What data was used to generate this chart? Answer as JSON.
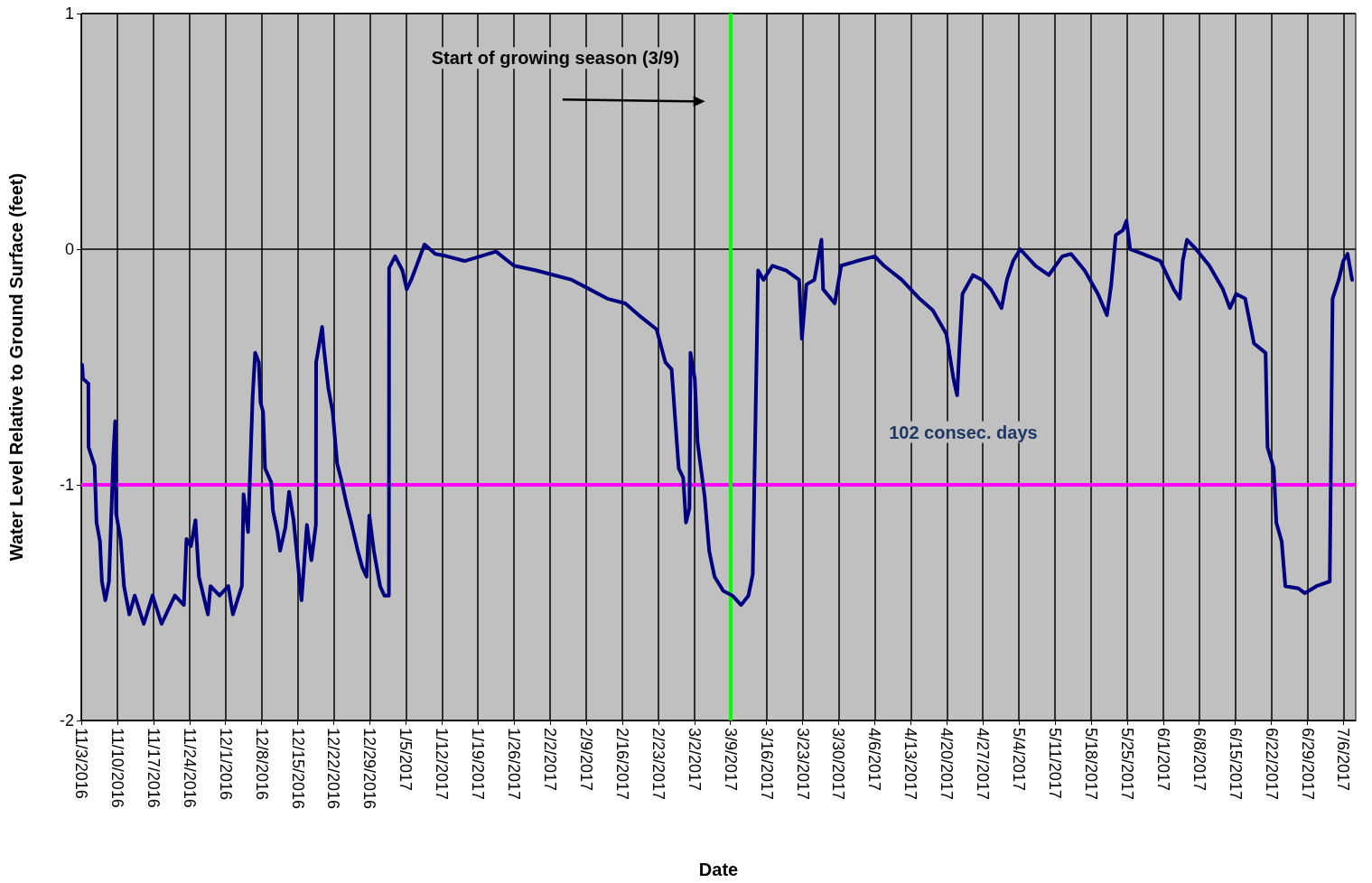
{
  "chart_data": {
    "type": "line",
    "xlabel": "Date",
    "ylabel": "Water Level Relative to Ground Surface (feet)",
    "series": [
      {
        "color": "#000080",
        "x": [
          "2016-11-03T04:00",
          "2016-11-03T08:00",
          "2016-11-04T09:00",
          "2016-11-04T10:00",
          "2016-11-05T14:00",
          "2016-11-05T23:00",
          "2016-11-06T15:00",
          "2016-11-07T00:00",
          "2016-11-07T16:00",
          "2016-11-08T09:00",
          "2016-11-09T06:00",
          "2016-11-09T14:00",
          "2016-11-09T18:00",
          "2016-11-10T15:00",
          "2016-11-11T07:00",
          "2016-11-12T08:00",
          "2016-11-13T09:00",
          "2016-11-15T03:00",
          "2016-11-16T20:00",
          "2016-11-18T14:00",
          "2016-11-21T04:00",
          "2016-11-22T22:00",
          "2016-11-23T10:00",
          "2016-11-24T07:00",
          "2016-11-25T04:00",
          "2016-11-25T20:00",
          "2016-11-27T14:00",
          "2016-11-28T02:00",
          "2016-11-29T20:00",
          "2016-12-01T13:00",
          "2016-12-02T10:00",
          "2016-12-04T04:00",
          "2016-12-04T12:00",
          "2016-12-05T09:00",
          "2016-12-06T06:00",
          "2016-12-06T18:00",
          "2016-12-07T11:00",
          "2016-12-07T19:00",
          "2016-12-08T07:00",
          "2016-12-08T16:00",
          "2016-12-09T21:00",
          "2016-12-10T05:00",
          "2016-12-11T02:00",
          "2016-12-11T14:00",
          "2016-12-12T15:00",
          "2016-12-13T08:00",
          "2016-12-14T05:00",
          "2016-12-14T17:00",
          "2016-12-15T18:00",
          "2016-12-16T19:00",
          "2016-12-17T16:00",
          "2016-12-18T13:00",
          "2016-12-18T14:00",
          "2016-12-19T18:00",
          "2016-12-20T02:00",
          "2016-12-20T23:00",
          "2016-12-21T19:00",
          "2016-12-22T16:00",
          "2016-12-23T09:00",
          "2016-12-24T14:00",
          "2016-12-25T07:00",
          "2016-12-26T16:00",
          "2016-12-27T13:00",
          "2016-12-28T09:00",
          "2016-12-28T22:00",
          "2016-12-29T19:00",
          "2016-12-31T00:00",
          "2016-12-31T20:00",
          "2017-01-01T17:00",
          "2017-01-01T18:00",
          "2017-01-02T22:00",
          "2017-01-04T08:00",
          "2017-01-05T04:00",
          "2017-01-06T01:00",
          "2017-01-08T15:00",
          "2017-01-10T17:00",
          "2017-01-12T23:00",
          "2017-01-16T10:00",
          "2017-01-22T12:00",
          "2017-01-25T23:00",
          "2017-01-30T07:00",
          "2017-02-02T18:00",
          "2017-02-06T05:00",
          "2017-02-09T16:00",
          "2017-02-13T03:00",
          "2017-02-16T14:00",
          "2017-02-19T05:00",
          "2017-02-22T16:00",
          "2017-02-24T09:00",
          "2017-02-25T14:00",
          "2017-02-26T23:00",
          "2017-02-27T20:00",
          "2017-02-28T09:00",
          "2017-03-01T01:00",
          "2017-03-01T06:00",
          "2017-03-02T02:00",
          "2017-03-02T15:00",
          "2017-03-04T00:00",
          "2017-03-04T21:00",
          "2017-03-05T22:00",
          "2017-03-07T15:00",
          "2017-03-09T09:00",
          "2017-03-11T02:00",
          "2017-03-12T12:00",
          "2017-03-13T08:00",
          "2017-03-14T09:00",
          "2017-03-15T10:00",
          "2017-03-17T04:00",
          "2017-03-19T18:00",
          "2017-03-22T08:00",
          "2017-03-22T21:00",
          "2017-03-23T18:00",
          "2017-03-25T07:00",
          "2017-03-26T16:00",
          "2017-03-27T00:00",
          "2017-03-29T06:00",
          "2017-03-30T12:00",
          "2017-04-02T14:00",
          "2017-04-06T01:00",
          "2017-04-07T19:00",
          "2017-04-11T06:00",
          "2017-04-14T17:00",
          "2017-04-17T07:00",
          "2017-04-19T22:00",
          "2017-04-21T07:00",
          "2017-04-22T00:00",
          "2017-04-22T12:00",
          "2017-04-23T01:00",
          "2017-04-25T02:00",
          "2017-04-26T20:00",
          "2017-04-28T13:00",
          "2017-04-30T15:00",
          "2017-05-01T16:00",
          "2017-05-02T21:00",
          "2017-05-04T06:00",
          "2017-05-07T05:00",
          "2017-05-09T19:00",
          "2017-05-12T10:00",
          "2017-05-14T03:00",
          "2017-05-16T18:00",
          "2017-05-19T08:00",
          "2017-05-21T02:00",
          "2017-05-21T22:00",
          "2017-05-22T19:00",
          "2017-05-24T04:00",
          "2017-05-24T21:00",
          "2017-05-25T14:00",
          "2017-05-28T00:00",
          "2017-05-31T11:00",
          "2017-06-03T01:00",
          "2017-06-04T06:00",
          "2017-06-04T19:00",
          "2017-06-05T15:00",
          "2017-06-07T09:00",
          "2017-06-09T23:00",
          "2017-06-12T14:00",
          "2017-06-13T23:00",
          "2017-06-15T04:00",
          "2017-06-16T22:00",
          "2017-06-18T15:00",
          "2017-06-20T21:00",
          "2017-06-21T06:00",
          "2017-06-22T11:00",
          "2017-06-22T23:00",
          "2017-06-24T00:00",
          "2017-06-24T17:00",
          "2017-06-27T07:00",
          "2017-06-28T12:00",
          "2017-06-30T18:00",
          "2017-07-03T08:00",
          "2017-07-03T21:00",
          "2017-07-05T02:00",
          "2017-07-05T23:00",
          "2017-07-06T19:00",
          "2017-07-07T16:00"
        ],
        "values": [
          -0.49,
          -0.55,
          -0.57,
          -0.84,
          -0.92,
          -1.16,
          -1.24,
          -1.41,
          -1.49,
          -1.41,
          -0.86,
          -0.73,
          -1.12,
          -1.23,
          -1.43,
          -1.55,
          -1.47,
          -1.59,
          -1.47,
          -1.59,
          -1.47,
          -1.51,
          -1.23,
          -1.26,
          -1.15,
          -1.39,
          -1.55,
          -1.43,
          -1.47,
          -1.43,
          -1.55,
          -1.43,
          -1.04,
          -1.2,
          -0.63,
          -0.44,
          -0.48,
          -0.65,
          -0.69,
          -0.93,
          -0.99,
          -1.11,
          -1.2,
          -1.28,
          -1.18,
          -1.03,
          -1.15,
          -1.26,
          -1.49,
          -1.17,
          -1.32,
          -1.17,
          -0.48,
          -0.33,
          -0.42,
          -0.59,
          -0.69,
          -0.91,
          -0.97,
          -1.09,
          -1.15,
          -1.28,
          -1.35,
          -1.39,
          -1.13,
          -1.28,
          -1.43,
          -1.47,
          -1.47,
          -0.08,
          -0.03,
          -0.09,
          -0.17,
          -0.13,
          0.02,
          -0.02,
          -0.03,
          -0.05,
          -0.01,
          -0.07,
          -0.09,
          -0.11,
          -0.13,
          -0.17,
          -0.21,
          -0.23,
          -0.28,
          -0.34,
          -0.48,
          -0.51,
          -0.93,
          -0.97,
          -1.16,
          -1.1,
          -0.44,
          -0.55,
          -0.82,
          -1.05,
          -1.28,
          -1.39,
          -1.45,
          -1.47,
          -1.51,
          -1.47,
          -1.38,
          -0.09,
          -0.13,
          -0.07,
          -0.09,
          -0.13,
          -0.38,
          -0.15,
          -0.13,
          0.04,
          -0.17,
          -0.23,
          -0.07,
          -0.05,
          -0.03,
          -0.07,
          -0.13,
          -0.21,
          -0.26,
          -0.36,
          -0.55,
          -0.62,
          -0.4,
          -0.19,
          -0.11,
          -0.13,
          -0.17,
          -0.25,
          -0.13,
          -0.05,
          0.0,
          -0.07,
          -0.11,
          -0.03,
          -0.02,
          -0.09,
          -0.19,
          -0.28,
          -0.15,
          0.06,
          0.08,
          0.12,
          0.0,
          -0.02,
          -0.05,
          -0.17,
          -0.21,
          -0.05,
          0.04,
          0.0,
          -0.07,
          -0.17,
          -0.25,
          -0.19,
          -0.21,
          -0.4,
          -0.44,
          -0.84,
          -0.93,
          -1.16,
          -1.24,
          -1.43,
          -1.44,
          -1.46,
          -1.43,
          -1.41,
          -0.21,
          -0.13,
          -0.05,
          -0.02,
          -0.13
        ]
      }
    ],
    "xlim": [
      "2016-11-03",
      "2017-07-08T09:00"
    ],
    "xticks": [
      {
        "value": "2016-11-03",
        "label": "11/3/2016"
      },
      {
        "value": "2016-11-10",
        "label": "11/10/2016"
      },
      {
        "value": "2016-11-17",
        "label": "11/17/2016"
      },
      {
        "value": "2016-11-24",
        "label": "11/24/2016"
      },
      {
        "value": "2016-12-01",
        "label": "12/1/2016"
      },
      {
        "value": "2016-12-08",
        "label": "12/8/2016"
      },
      {
        "value": "2016-12-15",
        "label": "12/15/2016"
      },
      {
        "value": "2016-12-22",
        "label": "12/22/2016"
      },
      {
        "value": "2016-12-29",
        "label": "12/29/2016"
      },
      {
        "value": "2017-01-05",
        "label": "1/5/2017"
      },
      {
        "value": "2017-01-12",
        "label": "1/12/2017"
      },
      {
        "value": "2017-01-19",
        "label": "1/19/2017"
      },
      {
        "value": "2017-01-26",
        "label": "1/26/2017"
      },
      {
        "value": "2017-02-02",
        "label": "2/2/2017"
      },
      {
        "value": "2017-02-09",
        "label": "2/9/2017"
      },
      {
        "value": "2017-02-16",
        "label": "2/16/2017"
      },
      {
        "value": "2017-02-23",
        "label": "2/23/2017"
      },
      {
        "value": "2017-03-02",
        "label": "3/2/2017"
      },
      {
        "value": "2017-03-09",
        "label": "3/9/2017"
      },
      {
        "value": "2017-03-16",
        "label": "3/16/2017"
      },
      {
        "value": "2017-03-23",
        "label": "3/23/2017"
      },
      {
        "value": "2017-03-30",
        "label": "3/30/2017"
      },
      {
        "value": "2017-04-06",
        "label": "4/6/2017"
      },
      {
        "value": "2017-04-13",
        "label": "4/13/2017"
      },
      {
        "value": "2017-04-20",
        "label": "4/20/2017"
      },
      {
        "value": "2017-04-27",
        "label": "4/27/2017"
      },
      {
        "value": "2017-05-04",
        "label": "5/4/2017"
      },
      {
        "value": "2017-05-11",
        "label": "5/11/2017"
      },
      {
        "value": "2017-05-18",
        "label": "5/18/2017"
      },
      {
        "value": "2017-05-25",
        "label": "5/25/2017"
      },
      {
        "value": "2017-06-01",
        "label": "6/1/2017"
      },
      {
        "value": "2017-06-08",
        "label": "6/8/2017"
      },
      {
        "value": "2017-06-15",
        "label": "6/15/2017"
      },
      {
        "value": "2017-06-22",
        "label": "6/22/2017"
      },
      {
        "value": "2017-06-29",
        "label": "6/29/2017"
      },
      {
        "value": "2017-07-06",
        "label": "7/6/2017"
      }
    ],
    "ylim": [
      -2,
      1
    ],
    "yticks": [
      -2,
      -1,
      0,
      1
    ],
    "grid": true,
    "ref_lines": [
      {
        "axis": "y",
        "value": -1,
        "color": "#ff00ff"
      },
      {
        "axis": "x",
        "value": "2017-03-09",
        "color": "#00ff00"
      }
    ],
    "annotations": [
      "Start of growing season (3/9)",
      "102 consec. days"
    ]
  }
}
